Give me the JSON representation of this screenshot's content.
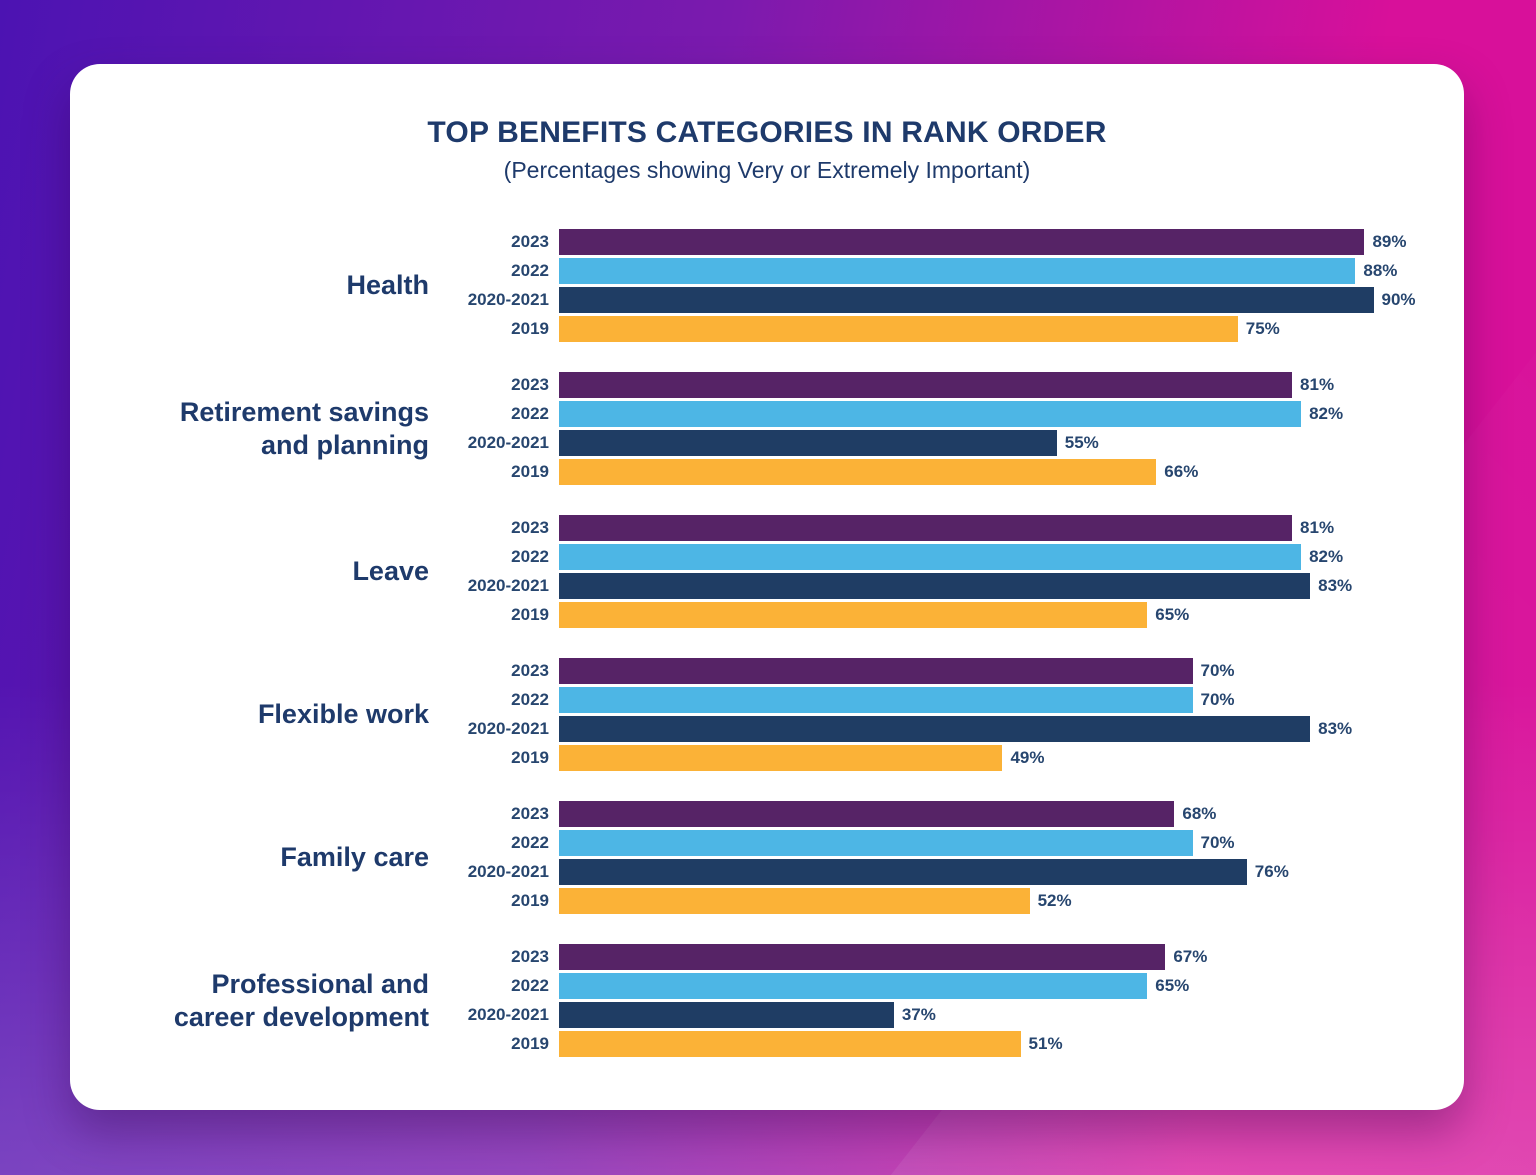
{
  "background": {
    "gradient_start": "#4C13B2",
    "gradient_end": "#D8109A"
  },
  "card_background": "#FFFFFF",
  "text_colors": {
    "title": "#1E3A6B",
    "labels": "#27466F"
  },
  "chart_data": {
    "type": "bar",
    "orientation": "horizontal",
    "title": "TOP BENEFITS CATEGORIES IN RANK ORDER",
    "subtitle": "(Percentages showing Very or Extremely Important)",
    "value_suffix": "%",
    "xlim": [
      0,
      100
    ],
    "grid": "off",
    "legend": "per-bar year labels",
    "series": [
      "2023",
      "2022",
      "2020-2021",
      "2019"
    ],
    "series_colors": {
      "2023": "#562366",
      "2022": "#4DB6E5",
      "2020-2021": "#1F3D64",
      "2019": "#FBB237"
    },
    "categories": [
      "Health",
      "Retirement savings and planning",
      "Leave",
      "Flexible work",
      "Family care",
      "Professional and career development"
    ],
    "groups": [
      {
        "category": "Health",
        "label_lines": [
          "Health"
        ],
        "bars": [
          {
            "year": "2023",
            "value": 89,
            "label": "89%"
          },
          {
            "year": "2022",
            "value": 88,
            "label": "88%"
          },
          {
            "year": "2020-2021",
            "value": 90,
            "label": "90%"
          },
          {
            "year": "2019",
            "value": 75,
            "label": "75%"
          }
        ]
      },
      {
        "category": "Retirement savings and planning",
        "label_lines": [
          "Retirement savings",
          "and planning"
        ],
        "bars": [
          {
            "year": "2023",
            "value": 81,
            "label": "81%"
          },
          {
            "year": "2022",
            "value": 82,
            "label": "82%"
          },
          {
            "year": "2020-2021",
            "value": 55,
            "label": "55%"
          },
          {
            "year": "2019",
            "value": 66,
            "label": "66%"
          }
        ]
      },
      {
        "category": "Leave",
        "label_lines": [
          "Leave"
        ],
        "bars": [
          {
            "year": "2023",
            "value": 81,
            "label": "81%"
          },
          {
            "year": "2022",
            "value": 82,
            "label": "82%"
          },
          {
            "year": "2020-2021",
            "value": 83,
            "label": "83%"
          },
          {
            "year": "2019",
            "value": 65,
            "label": "65%"
          }
        ]
      },
      {
        "category": "Flexible work",
        "label_lines": [
          "Flexible work"
        ],
        "bars": [
          {
            "year": "2023",
            "value": 70,
            "label": "70%"
          },
          {
            "year": "2022",
            "value": 70,
            "label": "70%"
          },
          {
            "year": "2020-2021",
            "value": 83,
            "label": "83%"
          },
          {
            "year": "2019",
            "value": 49,
            "label": "49%"
          }
        ]
      },
      {
        "category": "Family care",
        "label_lines": [
          "Family care"
        ],
        "bars": [
          {
            "year": "2023",
            "value": 68,
            "label": "68%"
          },
          {
            "year": "2022",
            "value": 70,
            "label": "70%"
          },
          {
            "year": "2020-2021",
            "value": 76,
            "label": "76%"
          },
          {
            "year": "2019",
            "value": 52,
            "label": "52%"
          }
        ]
      },
      {
        "category": "Professional and career development",
        "label_lines": [
          "Professional and",
          "career development"
        ],
        "bars": [
          {
            "year": "2023",
            "value": 67,
            "label": "67%"
          },
          {
            "year": "2022",
            "value": 65,
            "label": "65%"
          },
          {
            "year": "2020-2021",
            "value": 37,
            "label": "37%"
          },
          {
            "year": "2019",
            "value": 51,
            "label": "51%"
          }
        ]
      }
    ]
  }
}
